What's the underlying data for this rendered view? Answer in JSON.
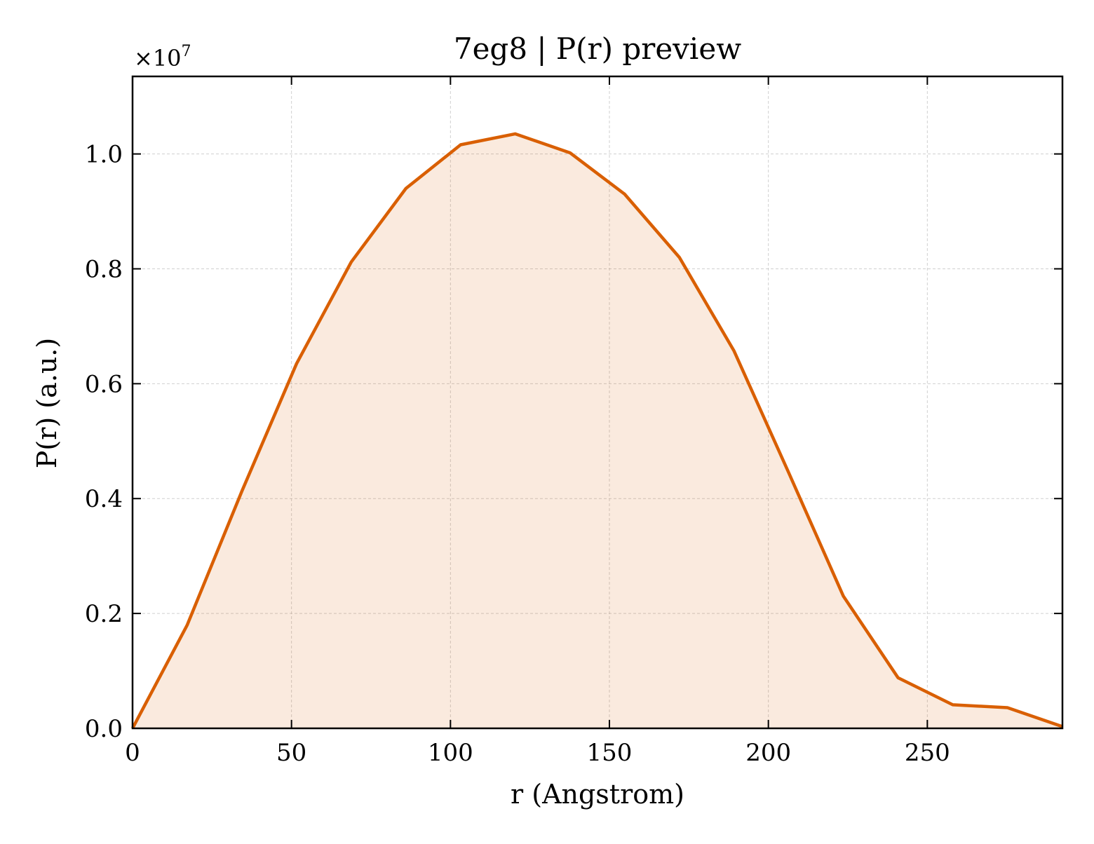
{
  "chart_data": {
    "type": "area",
    "title": "7eg8 | P(r) preview",
    "xlabel": "r (Angstrom)",
    "ylabel": "P(r) (a.u.)",
    "y_offset_label": "×10",
    "y_offset_exponent": "7",
    "xlim": [
      0,
      292.5
    ],
    "ylim": [
      0,
      1.135
    ],
    "xticks": [
      0,
      50,
      100,
      150,
      200,
      250
    ],
    "xtick_labels": [
      "0",
      "50",
      "100",
      "150",
      "200",
      "250"
    ],
    "yticks": [
      0,
      0.2,
      0.4,
      0.6,
      0.8,
      1.0
    ],
    "ytick_labels": [
      "0.0",
      "0.2",
      "0.4",
      "0.6",
      "0.8",
      "1.0"
    ],
    "grid": true,
    "line_color": "#d95f02",
    "fill_color": "#d95f02",
    "fill_opacity": 0.13,
    "series": [
      {
        "x": [
          0,
          17.2,
          34.4,
          51.6,
          68.8,
          86.0,
          103.2,
          120.4,
          137.6,
          154.8,
          172.0,
          189.2,
          206.4,
          223.6,
          240.8,
          258.0,
          275.2,
          292.5
        ],
        "values": [
          0,
          0.18,
          0.413,
          0.635,
          0.812,
          0.94,
          1.016,
          1.035,
          1.002,
          0.93,
          0.82,
          0.657,
          0.445,
          0.23,
          0.088,
          0.041,
          0.036,
          0.003
        ]
      }
    ]
  }
}
